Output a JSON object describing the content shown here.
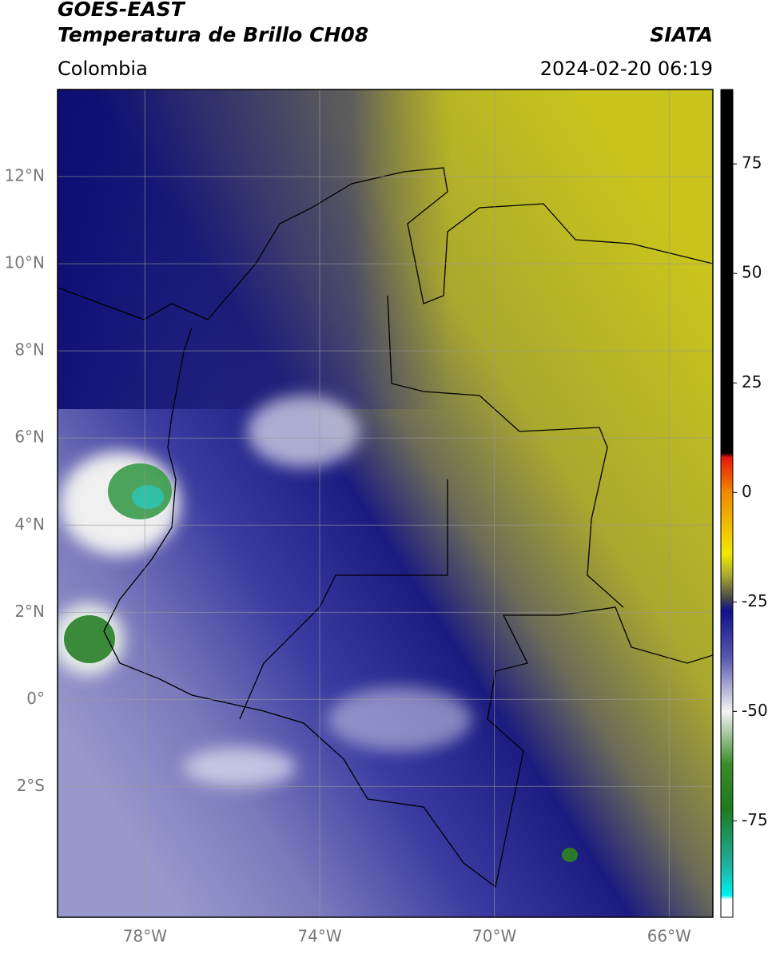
{
  "header": {
    "title": "GOES-EAST",
    "subtitle": "Temperatura de Brillo CH08",
    "source": "SIATA",
    "region": "Colombia",
    "datetime": "2024-02-20 06:19"
  },
  "map": {
    "lonlim": [
      -80,
      -65
    ],
    "latlim": [
      -5,
      14
    ],
    "grid": true,
    "lat_ticks": [
      {
        "value": 12,
        "label": "12°N"
      },
      {
        "value": 10,
        "label": "10°N"
      },
      {
        "value": 8,
        "label": "8°N"
      },
      {
        "value": 6,
        "label": "6°N"
      },
      {
        "value": 4,
        "label": "4°N"
      },
      {
        "value": 2,
        "label": "2°N"
      },
      {
        "value": 0,
        "label": "0°"
      },
      {
        "value": -2,
        "label": "2°S"
      }
    ],
    "lon_ticks": [
      {
        "value": -78,
        "label": "78°W"
      },
      {
        "value": -74,
        "label": "74°W"
      },
      {
        "value": -70,
        "label": "70°W"
      },
      {
        "value": -66,
        "label": "66°W"
      }
    ]
  },
  "colorbar": {
    "lim": [
      -97,
      92
    ],
    "ticks": [
      75,
      50,
      25,
      0,
      -25,
      -50,
      -75
    ],
    "stops": [
      {
        "value": 92,
        "color": "#000000"
      },
      {
        "value": 9,
        "color": "#000000"
      },
      {
        "value": 8,
        "color": "#e8160c"
      },
      {
        "value": 0,
        "color": "#f08a00"
      },
      {
        "value": -14,
        "color": "#f0e800"
      },
      {
        "value": -19,
        "color": "#a8a830"
      },
      {
        "value": -24,
        "color": "#4a4a4a"
      },
      {
        "value": -27,
        "color": "#10108a"
      },
      {
        "value": -38,
        "color": "#5a5ab0"
      },
      {
        "value": -50,
        "color": "#f4f4f4"
      },
      {
        "value": -62,
        "color": "#3c8c28"
      },
      {
        "value": -72,
        "color": "#1e7a1e"
      },
      {
        "value": -85,
        "color": "#20b0a0"
      },
      {
        "value": -92,
        "color": "#00f0f0"
      },
      {
        "value": -93,
        "color": "#ffffff"
      },
      {
        "value": -97,
        "color": "#ffffff"
      }
    ]
  }
}
